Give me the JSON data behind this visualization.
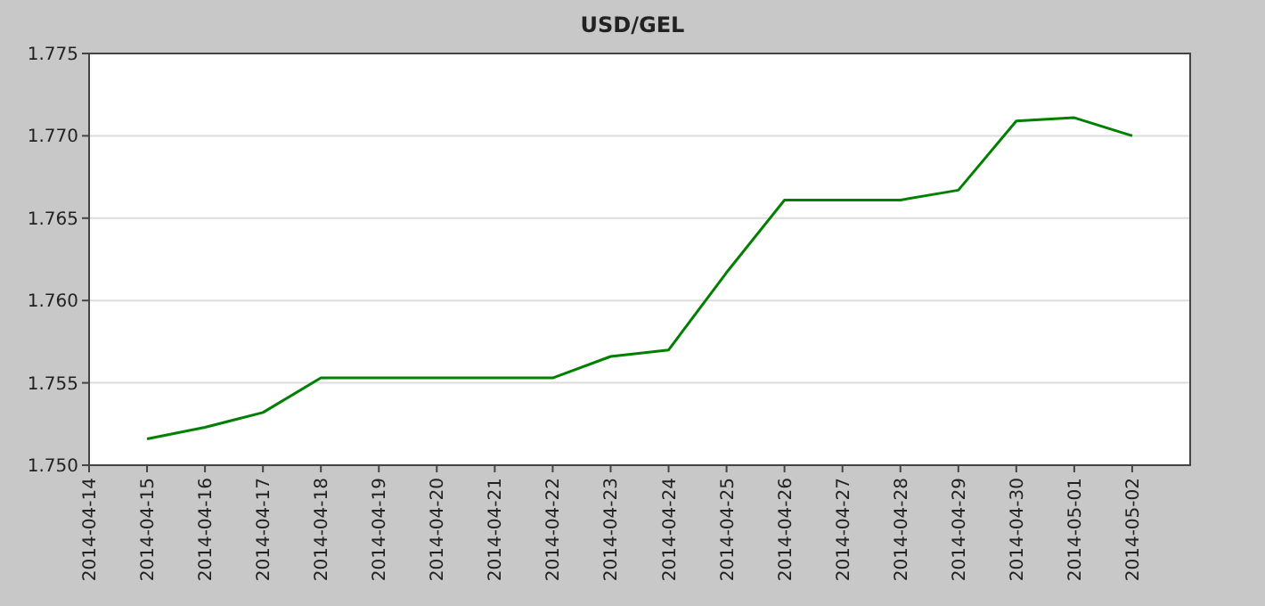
{
  "chart_data": {
    "type": "line",
    "title": "USD/GEL",
    "x": [
      "2014-04-15",
      "2014-04-16",
      "2014-04-17",
      "2014-04-18",
      "2014-04-19",
      "2014-04-20",
      "2014-04-21",
      "2014-04-22",
      "2014-04-23",
      "2014-04-24",
      "2014-04-25",
      "2014-04-26",
      "2014-04-27",
      "2014-04-28",
      "2014-04-29",
      "2014-04-30",
      "2014-05-01",
      "2014-05-02"
    ],
    "series": [
      {
        "color": "#008000",
        "values": [
          1.7516,
          1.7523,
          1.7532,
          1.7553,
          1.7553,
          1.7553,
          1.7553,
          1.7553,
          1.7566,
          1.757,
          1.7617,
          1.7661,
          1.7661,
          1.7661,
          1.7667,
          1.7709,
          1.7711,
          1.77
        ]
      }
    ],
    "xlim": [
      "2014-04-14",
      "2014-05-03"
    ],
    "xticks": [
      "2014-04-14",
      "2014-04-15",
      "2014-04-16",
      "2014-04-17",
      "2014-04-18",
      "2014-04-19",
      "2014-04-20",
      "2014-04-21",
      "2014-04-22",
      "2014-04-23",
      "2014-04-24",
      "2014-04-25",
      "2014-04-26",
      "2014-04-27",
      "2014-04-28",
      "2014-04-29",
      "2014-04-30",
      "2014-05-01",
      "2014-05-02"
    ],
    "ylim": [
      1.75,
      1.775
    ],
    "yticks": [
      {
        "value": 1.75,
        "label": "1.750"
      },
      {
        "value": 1.755,
        "label": "1.755"
      },
      {
        "value": 1.76,
        "label": "1.760"
      },
      {
        "value": 1.765,
        "label": "1.765"
      },
      {
        "value": 1.77,
        "label": "1.770"
      },
      {
        "value": 1.775,
        "label": "1.775"
      }
    ],
    "grid": "y",
    "marker": "none",
    "line_style": "solid"
  }
}
